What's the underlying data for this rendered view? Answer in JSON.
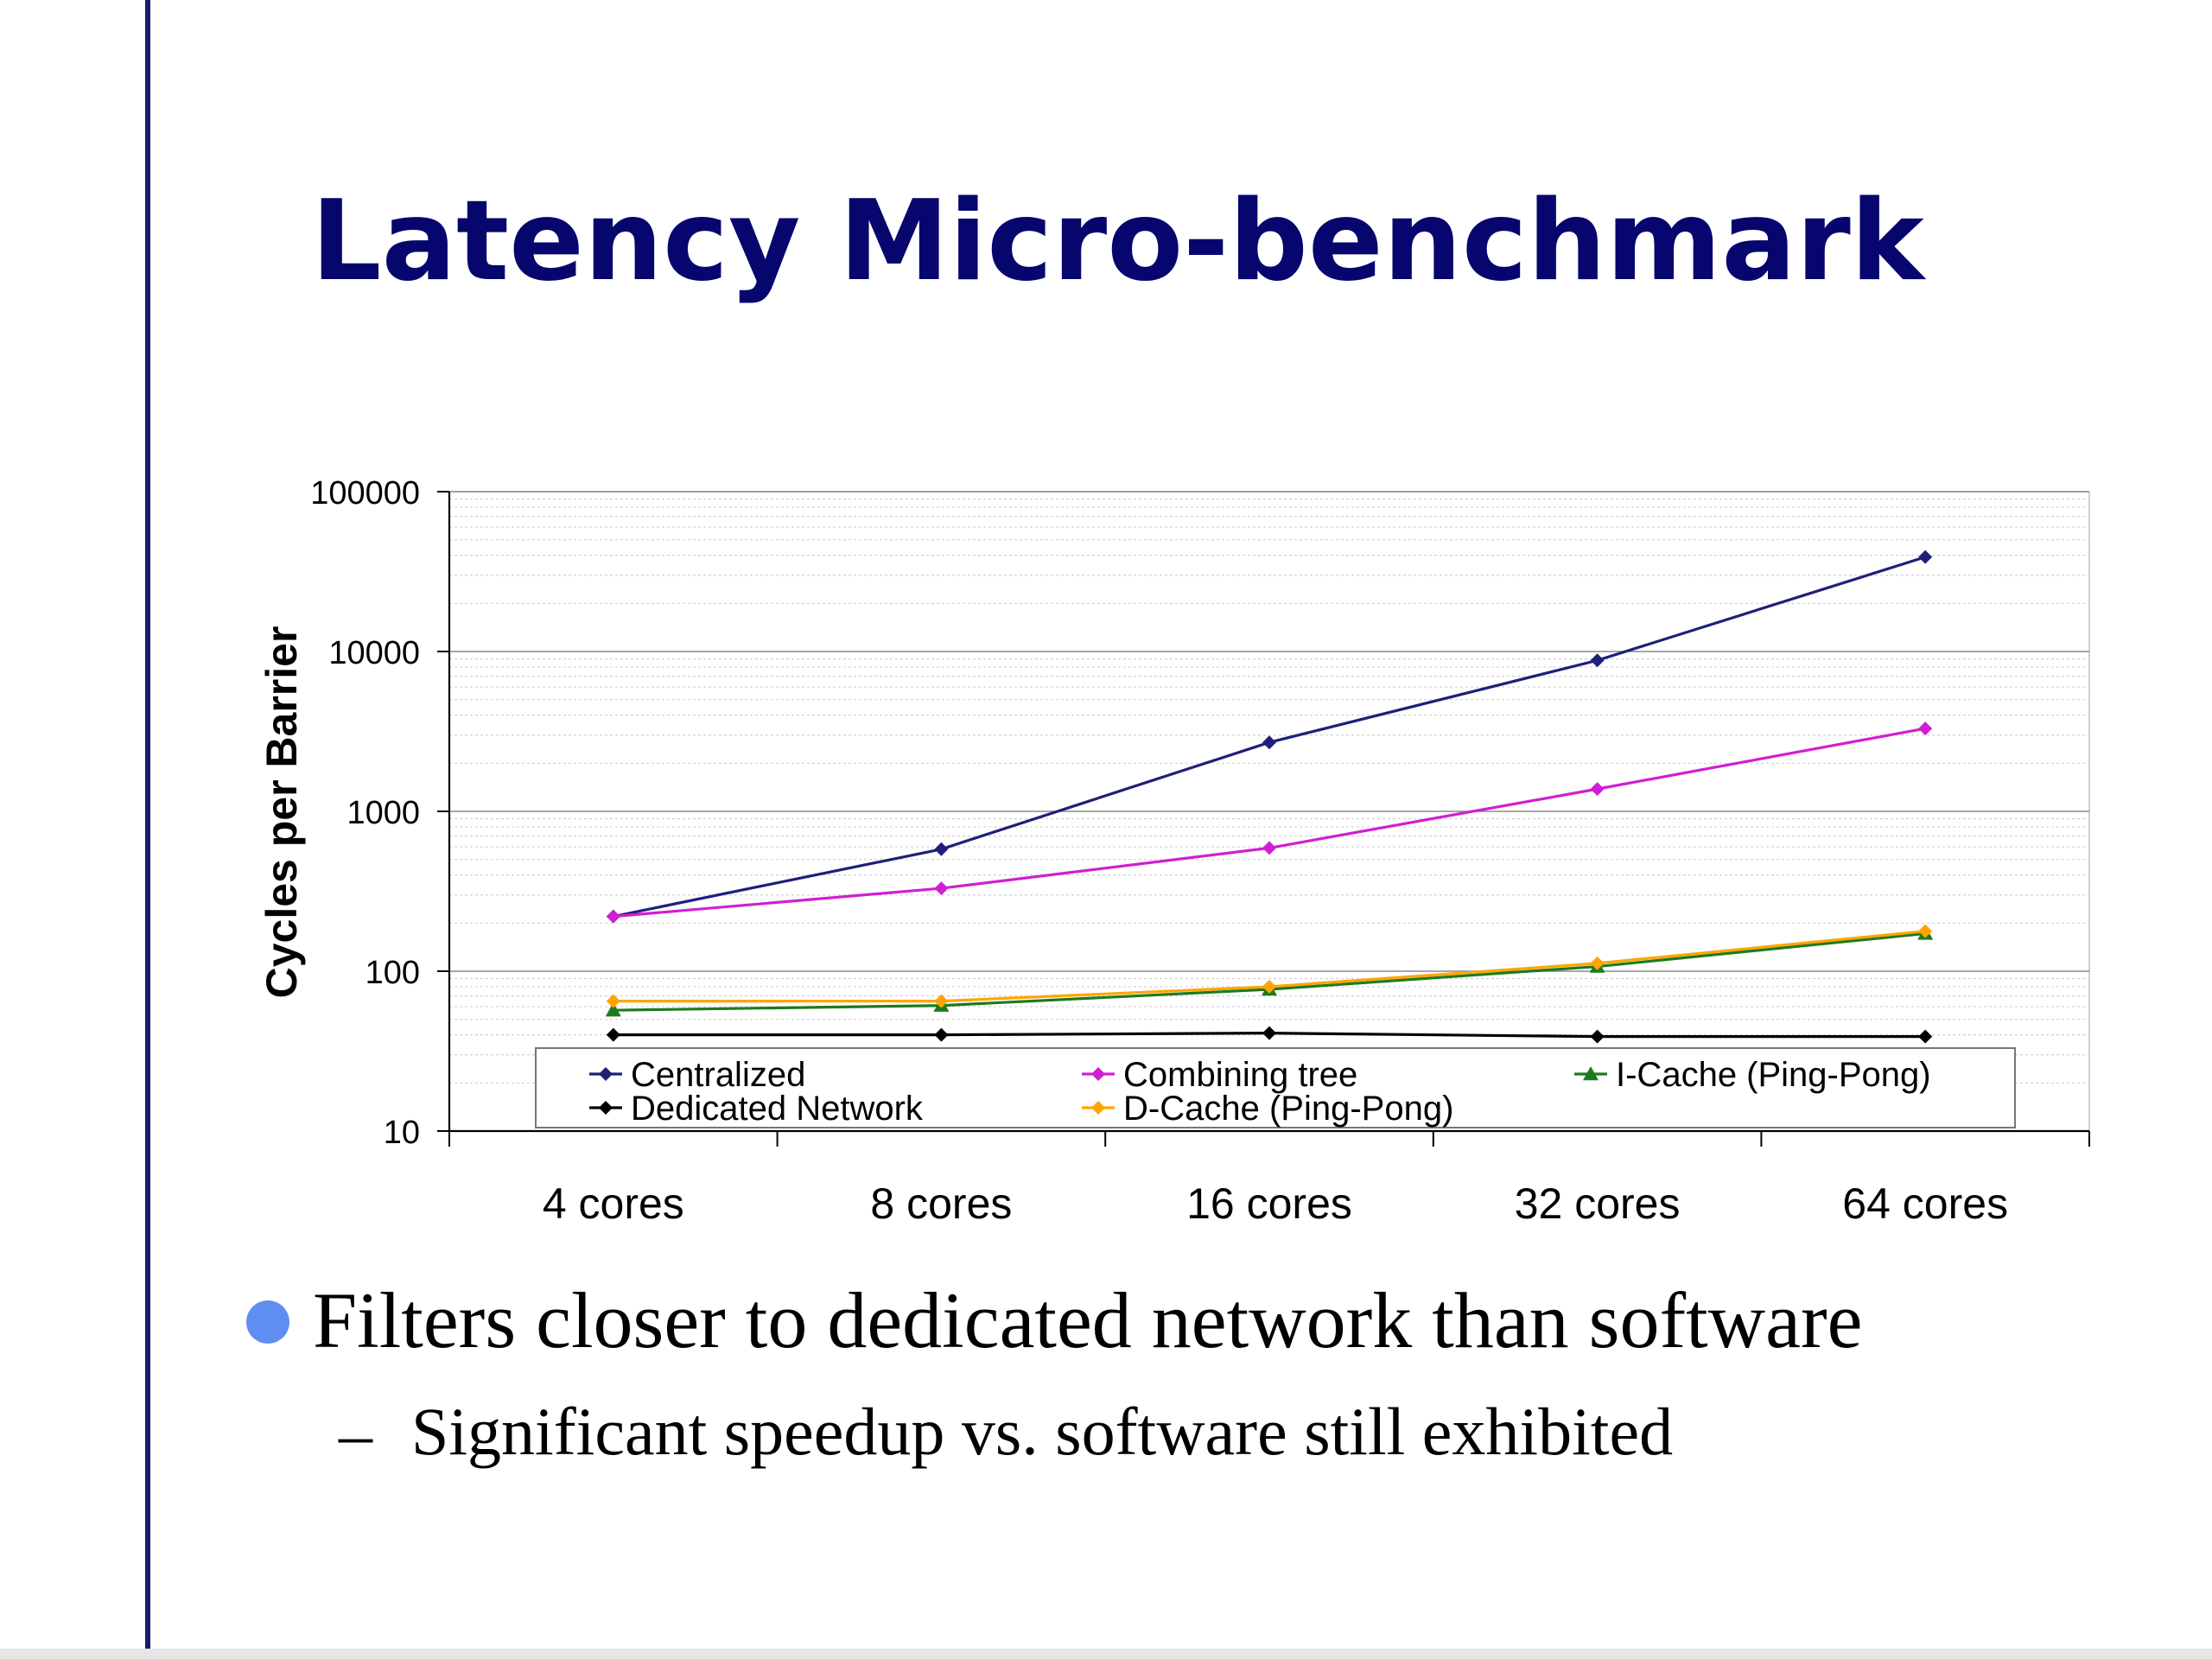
{
  "slide": {
    "title": "Latency Micro-benchmark",
    "bullet": "Filters closer to dedicated network than software",
    "sub_bullet": "Significant speedup vs. software still exhibited",
    "dash": "–"
  },
  "colors": {
    "title": "#06066e",
    "bullet": "#5e8ff0"
  },
  "chart_data": {
    "type": "line",
    "title": "",
    "ylabel": "Cycles per Barrier",
    "xlabel": "",
    "yscale": "log",
    "ylim": [
      10,
      100000
    ],
    "yticks": [
      "10",
      "100",
      "1000",
      "10000",
      "100000"
    ],
    "categories": [
      "4 cores",
      "8 cores",
      "16 cores",
      "32 cores",
      "64 cores"
    ],
    "grid": true,
    "legend_position": "bottom inside plot",
    "series": [
      {
        "name": "Centralized",
        "color": "#1f1f7a",
        "marker": "diamond",
        "values": [
          220,
          580,
          2700,
          8800,
          39000
        ]
      },
      {
        "name": "Combining tree",
        "color": "#d21ed2",
        "marker": "diamond",
        "values": [
          220,
          330,
          590,
          1380,
          3300
        ]
      },
      {
        "name": "I-Cache (Ping-Pong)",
        "color": "#1e7a1e",
        "marker": "triangle",
        "values": [
          57,
          61,
          77,
          107,
          172
        ]
      },
      {
        "name": "Dedicated Network",
        "color": "#000000",
        "marker": "diamond",
        "values": [
          40,
          40,
          41,
          39,
          39
        ]
      },
      {
        "name": "D-Cache (Ping-Pong)",
        "color": "#ffa500",
        "marker": "diamond",
        "values": [
          65,
          65,
          80,
          112,
          178
        ]
      }
    ]
  }
}
